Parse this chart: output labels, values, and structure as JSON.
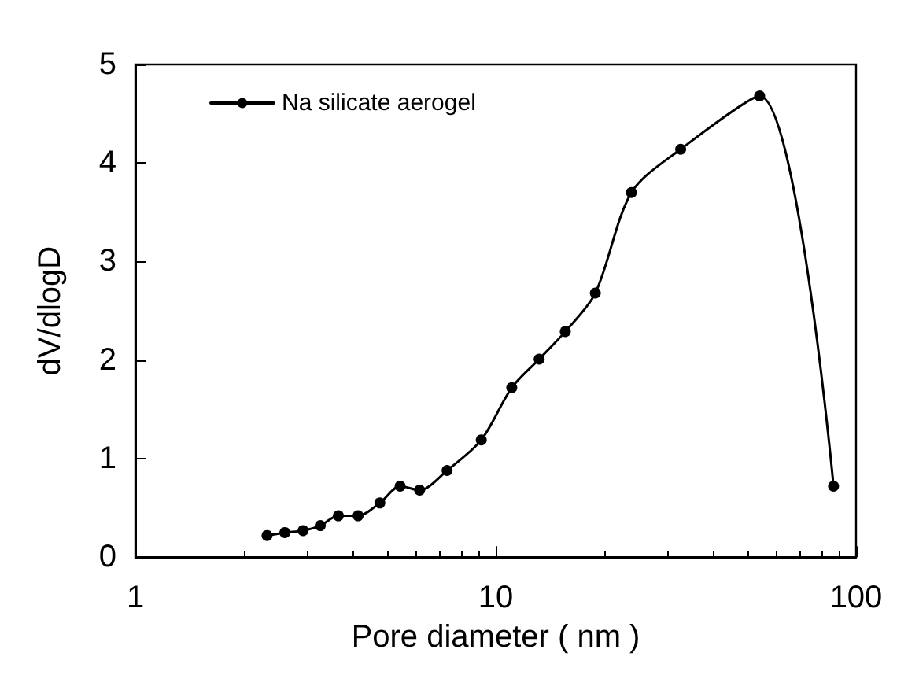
{
  "chart_data": {
    "type": "line",
    "xlabel": "Pore diameter ( nm )",
    "ylabel": "dV/dlogD",
    "log": "x",
    "xlim": [
      1,
      100
    ],
    "xticks": [
      1,
      10,
      100
    ],
    "ylim": [
      0,
      5
    ],
    "yticks": [
      0,
      1,
      2,
      3,
      4,
      5
    ],
    "grid": false,
    "legend": "top left",
    "marker": "circle",
    "line_style": "solid",
    "x": [
      2.32,
      2.6,
      2.92,
      3.26,
      3.66,
      4.15,
      4.77,
      5.43,
      6.15,
      7.33,
      9.12,
      11.08,
      13.2,
      15.6,
      18.9,
      23.8,
      32.6,
      54.0,
      86.6
    ],
    "series": [
      {
        "name": "Na silicate aerogel",
        "color": "#000000",
        "values": [
          0.22,
          0.25,
          0.27,
          0.32,
          0.42,
          0.42,
          0.55,
          0.72,
          0.68,
          0.88,
          1.19,
          1.72,
          2.01,
          2.29,
          2.68,
          3.7,
          4.14,
          4.68,
          0.72
        ]
      }
    ]
  }
}
